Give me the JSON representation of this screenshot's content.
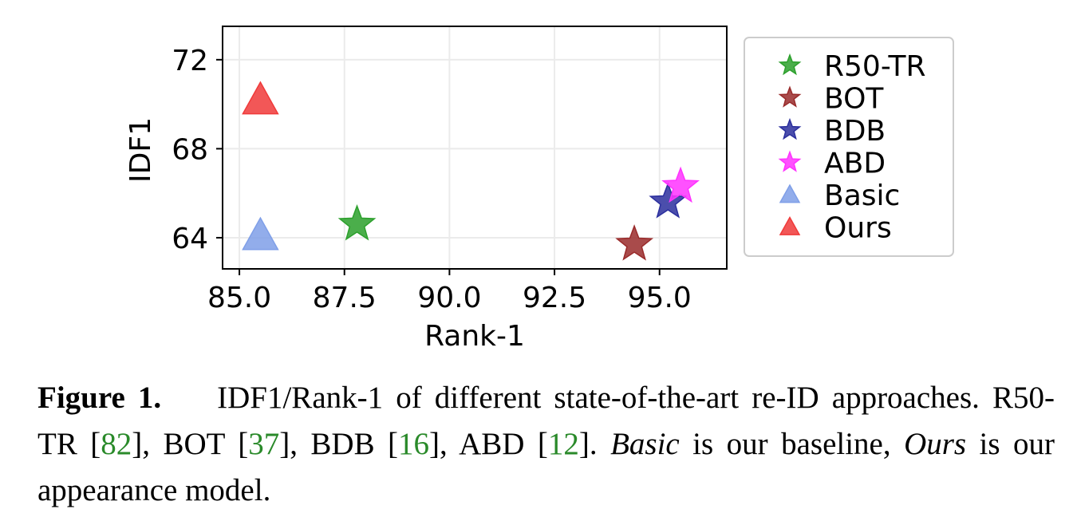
{
  "chart_data": {
    "type": "scatter",
    "xlabel": "Rank-1",
    "ylabel": "IDF1",
    "xlim": [
      84.6,
      96.6
    ],
    "ylim": [
      62.6,
      73.5
    ],
    "xticks": [
      85.0,
      87.5,
      90.0,
      92.5,
      95.0
    ],
    "xtick_labels": [
      "85.0",
      "87.5",
      "90.0",
      "92.5",
      "95.0"
    ],
    "yticks": [
      64,
      68,
      72
    ],
    "ytick_labels": [
      "64",
      "68",
      "72"
    ],
    "grid": true,
    "legend_position": "right",
    "series": [
      {
        "name": "R50-TR",
        "marker": "star",
        "color": "#2ca02c",
        "x": 87.8,
        "y": 64.6
      },
      {
        "name": "BOT",
        "marker": "star",
        "color": "#9a2b2b",
        "x": 94.4,
        "y": 63.7
      },
      {
        "name": "BDB",
        "marker": "star",
        "color": "#2b2f9e",
        "x": 95.2,
        "y": 65.6
      },
      {
        "name": "ABD",
        "marker": "star",
        "color": "#ff33ff",
        "x": 95.5,
        "y": 66.3
      },
      {
        "name": "Basic",
        "marker": "triangle",
        "color": "#7f9fe8",
        "x": 85.5,
        "y": 64.1
      },
      {
        "name": "Ours",
        "marker": "triangle",
        "color": "#f03a3a",
        "x": 85.5,
        "y": 70.2
      }
    ]
  },
  "caption": {
    "label": "Figure 1.",
    "text_1": "IDF1/Rank-1 of different state-of-the-art re-ID approaches. R50-TR [",
    "ref_1": "82",
    "text_2": "], BOT [",
    "ref_2": "37",
    "text_3": "], BDB [",
    "ref_3": "16",
    "text_4": "], ABD [",
    "ref_4": "12",
    "text_5": "]. ",
    "em_1": "Basic",
    "text_6": " is our baseline, ",
    "em_2": "Ours",
    "text_7": " is our appearance model."
  }
}
